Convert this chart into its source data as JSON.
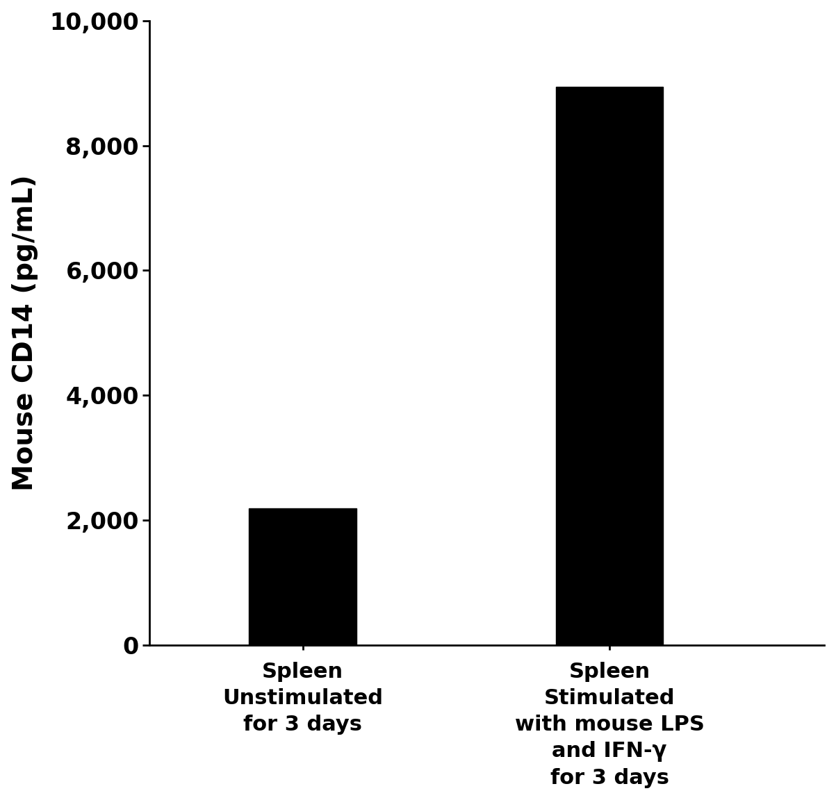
{
  "categories": [
    "Spleen\nUnstimulated\nfor 3 days",
    "Spleen\nStimulated\nwith mouse LPS\nand IFN-γ\nfor 3 days"
  ],
  "values": [
    2187.4,
    8939.2
  ],
  "bar_color": "#000000",
  "ylabel": "Mouse CD14 (pg/mL)",
  "ylim": [
    0,
    10000
  ],
  "yticks": [
    0,
    2000,
    4000,
    6000,
    8000,
    10000
  ],
  "ytick_labels": [
    "0",
    "2,000",
    "4,000",
    "6,000",
    "8,000",
    "10,000"
  ],
  "bar_width": 0.35,
  "background_color": "#ffffff",
  "ylabel_fontsize": 28,
  "tick_fontsize": 24,
  "xtick_fontsize": 22,
  "spine_linewidth": 2.0
}
